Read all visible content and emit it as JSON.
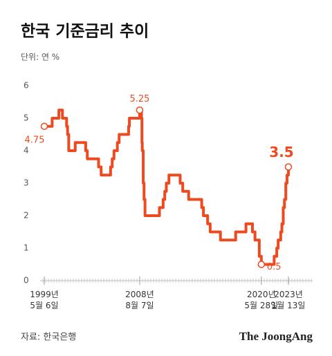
{
  "chart_data": {
    "type": "line",
    "title": "한국 기준금리 추이",
    "subtitle": "단위: 연 %",
    "source": "자료: 한국은행",
    "logo": "The JoongAng",
    "x": [
      "1999-05-06",
      "2000-02-10",
      "2000-10-05",
      "2001-02-08",
      "2001-07-05",
      "2001-08-09",
      "2001-09-19",
      "2002-05-07",
      "2003-05-13",
      "2003-07-10",
      "2004-08-12",
      "2004-11-11",
      "2005-10-11",
      "2005-12-08",
      "2006-02-09",
      "2006-06-08",
      "2006-08-10",
      "2007-07-12",
      "2007-08-09",
      "2008-08-07",
      "2008-10-09",
      "2008-10-27",
      "2008-11-07",
      "2008-12-11",
      "2009-01-09",
      "2009-02-12",
      "2010-07-09",
      "2010-11-16",
      "2011-01-13",
      "2011-03-10",
      "2011-06-10",
      "2012-07-12",
      "2012-10-11",
      "2013-05-09",
      "2014-08-14",
      "2014-10-15",
      "2015-03-12",
      "2015-06-11",
      "2016-06-09",
      "2017-11-30",
      "2018-11-30",
      "2019-07-18",
      "2019-10-16",
      "2020-03-16",
      "2020-05-28",
      "2021-08-26",
      "2021-11-25",
      "2022-01-14",
      "2022-04-14",
      "2022-05-26",
      "2022-07-13",
      "2022-08-25",
      "2022-10-12",
      "2022-11-24",
      "2023-01-13"
    ],
    "series": [
      {
        "name": "기준금리",
        "color": "#ee4a1f",
        "values": [
          4.75,
          5,
          5.25,
          5,
          4.75,
          4.5,
          4,
          4.25,
          4,
          3.75,
          3.5,
          3.25,
          3.5,
          3.75,
          4,
          4.25,
          4.5,
          4.75,
          5,
          5.25,
          5,
          4.25,
          4,
          3,
          2.5,
          2,
          2.25,
          2.5,
          2.75,
          3,
          3.25,
          3,
          2.75,
          2.5,
          2.25,
          2,
          1.75,
          1.5,
          1.25,
          1.5,
          1.75,
          1.5,
          1.25,
          0.75,
          0.5,
          0.75,
          1,
          1.25,
          1.5,
          1.75,
          2.25,
          2.5,
          3,
          3.25,
          3.5
        ]
      }
    ],
    "xlim": [
      "1999-05-06",
      "2023-01-13"
    ],
    "xticks": [
      {
        "value": "1999-05-06",
        "label": "1999년\n5월 6일"
      },
      {
        "value": "2008-08-07",
        "label": "2008년\n8월 7일"
      },
      {
        "value": "2020-05-28",
        "label": "2020년\n5월 28일"
      },
      {
        "value": "2023-01-13",
        "label": "2023년\n1월 13일"
      }
    ],
    "ylim": [
      0,
      6
    ],
    "yticks": [
      0,
      1,
      2,
      3,
      4,
      5,
      6
    ],
    "grid": false
  }
}
